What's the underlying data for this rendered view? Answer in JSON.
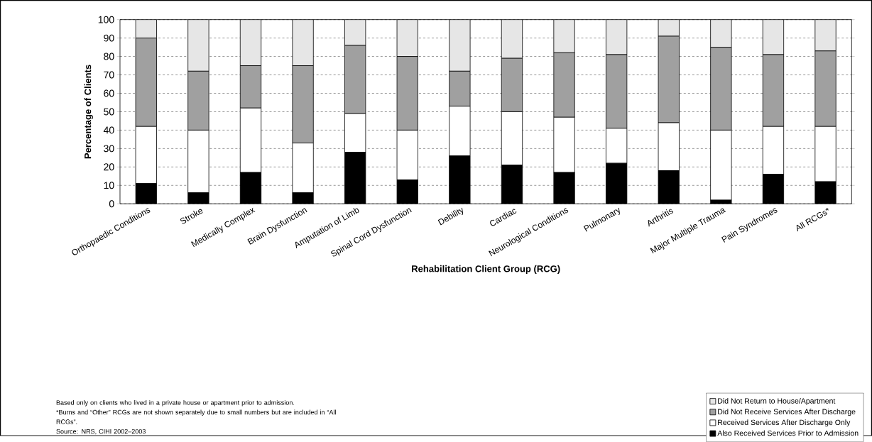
{
  "chart_data": {
    "type": "bar",
    "stacked": true,
    "xlabel": "Rehabilitation Client Group (RCG)",
    "ylabel": "Percentage of Clients",
    "categories": [
      "Orthopaedic Conditions",
      "Stroke",
      "Medically Complex",
      "Brain Dysfunction",
      "Amputation of Limb",
      "Spinal Cord Dysfunction",
      "Debility",
      "Cardiac",
      "Neurological Conditions",
      "Pulmonary",
      "Arthritis",
      "Major Multiple Trauma",
      "Pain Syndromes",
      "All RCGs*"
    ],
    "series": [
      {
        "name": "Also Received Services Prior to Admission",
        "color": "#000000",
        "values": [
          11,
          6,
          17,
          6,
          28,
          13,
          26,
          21,
          17,
          22,
          18,
          2,
          16,
          12
        ]
      },
      {
        "name": "Received Services After Discharge Only",
        "color": "#ffffff",
        "values": [
          31,
          34,
          35,
          27,
          21,
          27,
          27,
          29,
          30,
          19,
          26,
          38,
          26,
          30
        ]
      },
      {
        "name": "Did Not Receive Services After Discharge",
        "color": "#a0a0a0",
        "values": [
          48,
          32,
          23,
          42,
          37,
          40,
          19,
          29,
          35,
          40,
          47,
          45,
          39,
          41
        ]
      },
      {
        "name": "Did Not Return to House/Apartment",
        "color": "#e6e6e6",
        "values": [
          10,
          28,
          25,
          25,
          14,
          20,
          28,
          21,
          18,
          19,
          9,
          15,
          19,
          17
        ]
      }
    ],
    "ylim": [
      0,
      100
    ],
    "yticks": [
      0,
      10,
      20,
      30,
      40,
      50,
      60,
      70,
      80,
      90,
      100
    ],
    "grid": "y",
    "legend": "bottom right",
    "annotations": [
      "Based only on clients who lived in a private house or apartment prior to admission.",
      "*Burns and “Other” RCGs are not shown separately due to small numbers but are included in “All RCGs”.",
      "Source: NRS, CIHI 2002–2003"
    ]
  }
}
